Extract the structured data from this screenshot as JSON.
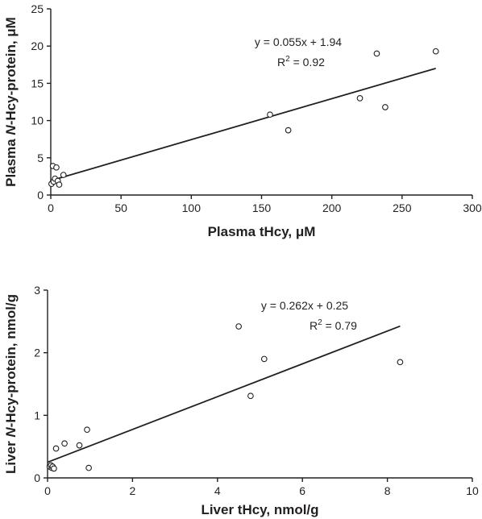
{
  "chart_data": [
    {
      "type": "scatter",
      "xlabel": "Plasma tHcy, μM",
      "ylabel_parts": [
        "Plasma ",
        "N",
        "-Hcy-protein, μM"
      ],
      "xlim": [
        0,
        300
      ],
      "ylim": [
        0,
        25
      ],
      "xticks": [
        0,
        50,
        100,
        150,
        200,
        250,
        300
      ],
      "yticks": [
        0,
        5,
        10,
        15,
        20,
        25
      ],
      "x": [
        0.5,
        1.5,
        2,
        3,
        4,
        5,
        6,
        9,
        156,
        169,
        220,
        232,
        238,
        274
      ],
      "y": [
        1.5,
        3.9,
        1.8,
        2.2,
        3.7,
        1.9,
        1.4,
        2.7,
        10.8,
        8.7,
        13.0,
        19.0,
        11.8,
        19.3
      ],
      "fit": {
        "slope": 0.055,
        "intercept": 1.94,
        "x_range": [
          0,
          274
        ]
      },
      "equation": "y = 0.055x + 1.94",
      "r2_prefix": "R",
      "r2_sup": "2",
      "r2_value": " = 0.92",
      "grid": false,
      "legend": "none"
    },
    {
      "type": "scatter",
      "xlabel": "Liver tHcy, nmol/g",
      "ylabel_parts": [
        "Liver ",
        "N",
        "-Hcy-protein, nmol/g"
      ],
      "xlim": [
        0,
        10
      ],
      "ylim": [
        0,
        3
      ],
      "xticks": [
        0,
        2,
        4,
        6,
        8,
        10
      ],
      "yticks": [
        0,
        1,
        2,
        3
      ],
      "x": [
        0.05,
        0.08,
        0.1,
        0.12,
        0.15,
        0.2,
        0.4,
        0.75,
        0.93,
        0.97,
        4.5,
        4.78,
        5.1,
        8.3
      ],
      "y": [
        0.18,
        0.2,
        0.16,
        0.18,
        0.15,
        0.47,
        0.55,
        0.52,
        0.77,
        0.16,
        2.42,
        1.31,
        1.9,
        1.85
      ],
      "fit": {
        "slope": 0.262,
        "intercept": 0.25,
        "x_range": [
          0,
          8.3
        ]
      },
      "equation": "y = 0.262x + 0.25",
      "r2_prefix": "R",
      "r2_sup": "2",
      "r2_value": " = 0.79",
      "grid": false,
      "legend": "none"
    }
  ]
}
